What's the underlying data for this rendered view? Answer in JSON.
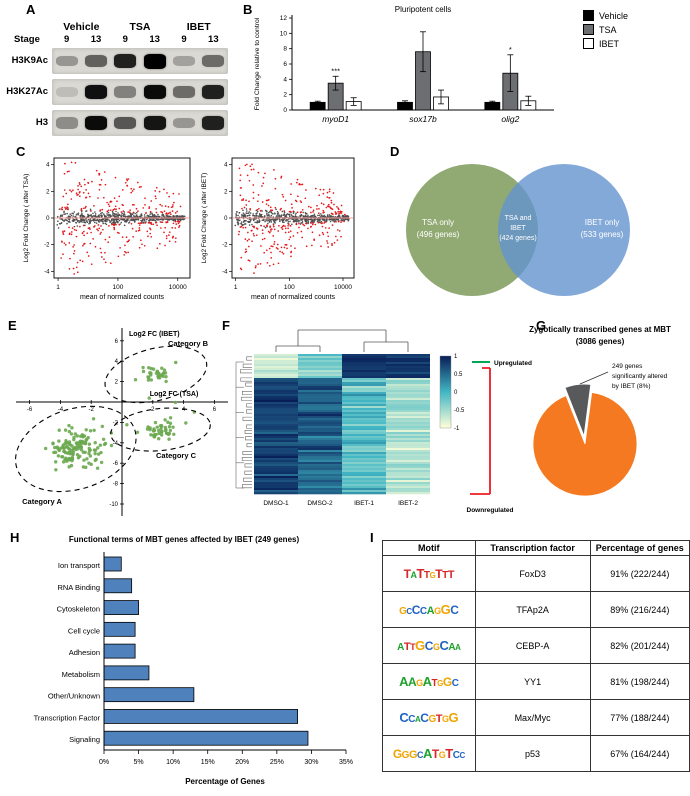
{
  "panels": {
    "A": {
      "label": "A",
      "stage_label": "Stage",
      "groups": [
        "Vehicle",
        "TSA",
        "IBET"
      ],
      "stages": [
        "9",
        "13",
        "9",
        "13",
        "9",
        "13"
      ],
      "blot_rows": [
        {
          "label": "H3K9Ac",
          "band_intensities": [
            0.3,
            0.55,
            0.85,
            1.0,
            0.25,
            0.5
          ]
        },
        {
          "label": "H3K27Ac",
          "band_intensities": [
            0.12,
            0.92,
            0.4,
            0.95,
            0.5,
            0.85
          ]
        },
        {
          "label": "H3",
          "band_intensities": [
            0.35,
            0.95,
            0.6,
            0.9,
            0.3,
            0.85
          ]
        }
      ]
    },
    "B": {
      "label": "B",
      "legend": [
        {
          "label": "Vehicle",
          "color": "#000000"
        },
        {
          "label": "TSA",
          "color": "#6d6e71"
        },
        {
          "label": "IBET",
          "color": "#ffffff"
        }
      ]
    },
    "C": {
      "label": "C"
    },
    "D": {
      "label": "D",
      "left_circle": {
        "color": "#8ba56b",
        "lines": [
          "TSA only",
          "(496 genes)"
        ]
      },
      "overlap": {
        "lines": [
          "TSA and",
          "IBET",
          "(424 genes)"
        ]
      },
      "right_circle": {
        "color": "#6494cf",
        "lines": [
          "IBET only",
          "(533 genes)"
        ]
      }
    },
    "E": {
      "label": "E"
    },
    "F": {
      "label": "F"
    },
    "G": {
      "label": "G"
    },
    "H": {
      "label": "H"
    },
    "I": {
      "label": "I"
    }
  },
  "chart_data": [
    {
      "panel": "B",
      "type": "bar",
      "title": "Pluripotent cells",
      "ylabel": "Fold Change relative to control",
      "ylim": [
        0,
        12
      ],
      "yticks": [
        0,
        2,
        4,
        6,
        8,
        10,
        12
      ],
      "categories": [
        "myoD1",
        "sox17b",
        "olig2"
      ],
      "series": [
        {
          "name": "Vehicle",
          "color": "#000000",
          "values": [
            1.0,
            1.0,
            1.0
          ],
          "errors": [
            0.15,
            0.2,
            0.15
          ]
        },
        {
          "name": "TSA",
          "color": "#6d6e71",
          "values": [
            3.5,
            7.6,
            4.8
          ],
          "errors": [
            0.9,
            2.6,
            2.4
          ]
        },
        {
          "name": "IBET",
          "color": "#ffffff",
          "values": [
            1.1,
            1.7,
            1.2
          ],
          "errors": [
            0.5,
            0.9,
            0.6
          ]
        }
      ],
      "significance": [
        {
          "category_index": 0,
          "series_index": 1,
          "mark": "***"
        },
        {
          "category_index": 2,
          "series_index": 1,
          "mark": "*"
        }
      ],
      "legend": [
        "Vehicle",
        "TSA",
        "IBET"
      ]
    },
    {
      "panel": "C-left",
      "type": "scatter",
      "subtype": "MA-plot",
      "ylabel": "Log2 Fold Change ( after TSA)",
      "xlabel": "mean of normalized counts",
      "x_scale": "log10",
      "xtick_labels": [
        "1",
        "100",
        "10000"
      ],
      "ylim": [
        -4.5,
        4.5
      ],
      "yticks": [
        -4,
        -2,
        0,
        2,
        4
      ],
      "significant_color": "#e31a1c",
      "nonsignificant_color": "#4d4d4d",
      "zero_line_color": "#ffa0a0",
      "approx_points": {
        "nonsignificant": 700,
        "significant": 320
      }
    },
    {
      "panel": "C-right",
      "type": "scatter",
      "subtype": "MA-plot",
      "ylabel": "Log2 Fold Change ( after IBET)",
      "xlabel": "mean of normalized counts",
      "x_scale": "log10",
      "xtick_labels": [
        "1",
        "100",
        "10000"
      ],
      "ylim": [
        -4.5,
        4.5
      ],
      "yticks": [
        -4,
        -2,
        0,
        2,
        4
      ],
      "significant_color": "#e31a1c",
      "nonsignificant_color": "#4d4d4d",
      "zero_line_color": "#ffa0a0",
      "approx_points": {
        "nonsignificant": 650,
        "significant": 300
      }
    },
    {
      "panel": "E",
      "type": "scatter",
      "xlabel": "Log2 FC (TSA)",
      "ylabel": "Log2 FC (IBET)",
      "xlim": [
        -6.8,
        6.8
      ],
      "ylim": [
        -11,
        7
      ],
      "xticks": [
        -6,
        -4,
        -2,
        2,
        4,
        6
      ],
      "yticks": [
        6,
        4,
        2,
        -2,
        -4,
        -6,
        -8,
        -10
      ],
      "point_color": "#6aa84f",
      "clusters": [
        {
          "name": "Category A",
          "center_x": -3.0,
          "center_y": -4.6,
          "n": 130
        },
        {
          "name": "Category B",
          "center_x": 2.2,
          "center_y": 2.7,
          "n": 32
        },
        {
          "name": "Category C",
          "center_x": 2.5,
          "center_y": -2.7,
          "n": 42
        }
      ]
    },
    {
      "panel": "F",
      "type": "heatmap",
      "columns": [
        "DMSO-1",
        "DMSO-2",
        "IBET-1",
        "IBET-2"
      ],
      "rows": 70,
      "colorbar_ticks": [
        1,
        0.5,
        0,
        -0.5,
        -1
      ],
      "color_low": "#ffffd9",
      "color_mid": "#41b6c4",
      "color_high": "#081d58",
      "cluster_structure": {
        "upregulated_rows": 12,
        "downregulated_rows": 58
      },
      "annotations": {
        "up_label": "Upregulated",
        "up_color": "#00a651",
        "down_label": "Downregulated",
        "down_color": "#ed1c24"
      }
    },
    {
      "panel": "G",
      "type": "pie",
      "title_lines": [
        "Zygotically transcribed genes at MBT",
        "(3086 genes)"
      ],
      "slices": [
        {
          "value": 92,
          "color": "#f47920"
        },
        {
          "value": 8,
          "color": "#58595b",
          "label": "249 genes significantly altered by IBET (8%)"
        }
      ],
      "callout_lines": [
        "249 genes",
        "significantly altered",
        "by IBET (8%)"
      ]
    },
    {
      "panel": "H",
      "type": "bar",
      "orientation": "horizontal",
      "title": "Functional terms of MBT genes affected by IBET (249 genes)",
      "categories": [
        "Ion transport",
        "RNA Binding",
        "Cytoskeleton",
        "Cell cycle",
        "Adhesion",
        "Metabolism",
        "Other/Unknown",
        "Transcription Factor",
        "Signaling"
      ],
      "values": [
        2.5,
        4.0,
        5.0,
        4.5,
        4.5,
        6.5,
        13.0,
        28.0,
        29.5
      ],
      "xlabel": "Percentage of Genes",
      "xlim": [
        0,
        35
      ],
      "xtick_labels": [
        "0%",
        "5%",
        "10%",
        "15%",
        "20%",
        "25%",
        "30%",
        "35%"
      ],
      "bar_color": "#4f81bd"
    },
    {
      "panel": "I",
      "type": "table",
      "headers": [
        "Motif",
        "Transcription factor",
        "Percentage of genes"
      ],
      "nucleotide_colors": {
        "A": "#1fa12e",
        "C": "#1f63c4",
        "G": "#f0a500",
        "T": "#d62728"
      },
      "rows": [
        {
          "motif": "TATTGTTT",
          "transcription_factor": "FoxD3",
          "percentage": "91% (222/244)"
        },
        {
          "motif": "GCCCAGGC",
          "transcription_factor": "TFAp2A",
          "percentage": "89% (216/244)"
        },
        {
          "motif": "ATTGCGCAA",
          "transcription_factor": "CEBP-A",
          "percentage": "82% (201/244)"
        },
        {
          "motif": "AAGATGGC",
          "transcription_factor": "YY1",
          "percentage": "81% (198/244)"
        },
        {
          "motif": "CCACGTGG",
          "transcription_factor": "Max/Myc",
          "percentage": "77% (188/244)"
        },
        {
          "motif": "GGGCATGTCC",
          "transcription_factor": "p53",
          "percentage": "67% (164/244)"
        }
      ]
    }
  ]
}
